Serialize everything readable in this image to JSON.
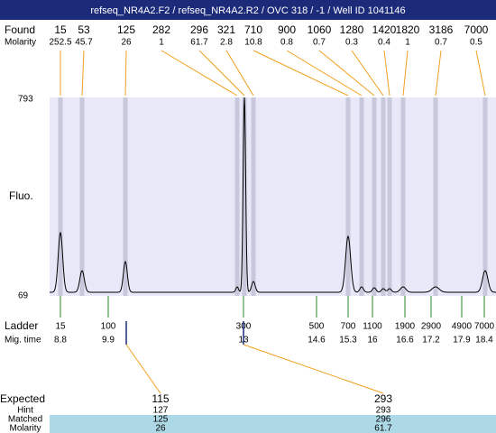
{
  "title": "refseq_NR4A2.F2 / refseq_NR4A2.R2 / OVC 318 / -1 / Well ID 1041146",
  "found": {
    "label": "Found",
    "molarity_label": "Molarity",
    "peaks": [
      {
        "size": 15,
        "molarity": 252.5
      },
      {
        "size": 53,
        "molarity": 45.7
      },
      {
        "size": 125,
        "molarity": 26
      },
      {
        "size": 282,
        "molarity": 1
      },
      {
        "size": 296,
        "molarity": 61.7
      },
      {
        "size": 321,
        "molarity": 2.8
      },
      {
        "size": 710,
        "molarity": 10.8
      },
      {
        "size": 900,
        "molarity": 0.8
      },
      {
        "size": 1060,
        "molarity": 0.7
      },
      {
        "size": 1280,
        "molarity": 0.3
      },
      {
        "size": 1420,
        "molarity": 0.4
      },
      {
        "size": 1820,
        "molarity": 1
      },
      {
        "size": 3186,
        "molarity": 0.7
      },
      {
        "size": 7000,
        "molarity": 0.5
      }
    ]
  },
  "fluo_axis": {
    "label": "Fluo.",
    "max": 793,
    "min": 69
  },
  "ladder": {
    "label": "Ladder",
    "time_label": "Mig. time",
    "items": [
      {
        "size": 15,
        "time": 8.8
      },
      {
        "size": 100,
        "time": 9.9
      },
      {
        "size": 300,
        "time": 13
      },
      {
        "size": 500,
        "time": 14.6
      },
      {
        "size": 700,
        "time": 15.3
      },
      {
        "size": 1100,
        "time": 16
      },
      {
        "size": 1900,
        "time": 16.6
      },
      {
        "size": 2900,
        "time": 17.2
      },
      {
        "size": 4900,
        "time": 17.9
      },
      {
        "size": 7000,
        "time": 18.4
      }
    ]
  },
  "expected": {
    "label": "Expected",
    "hint_label": "Hint",
    "matched_label": "Matched",
    "molarity_label": "Molarity",
    "columns": [
      {
        "expected": 115,
        "hint": 127,
        "matched": 125,
        "molarity": 26
      },
      {
        "expected": 293,
        "hint": 293,
        "matched": 296,
        "molarity": 61.7
      }
    ]
  }
}
